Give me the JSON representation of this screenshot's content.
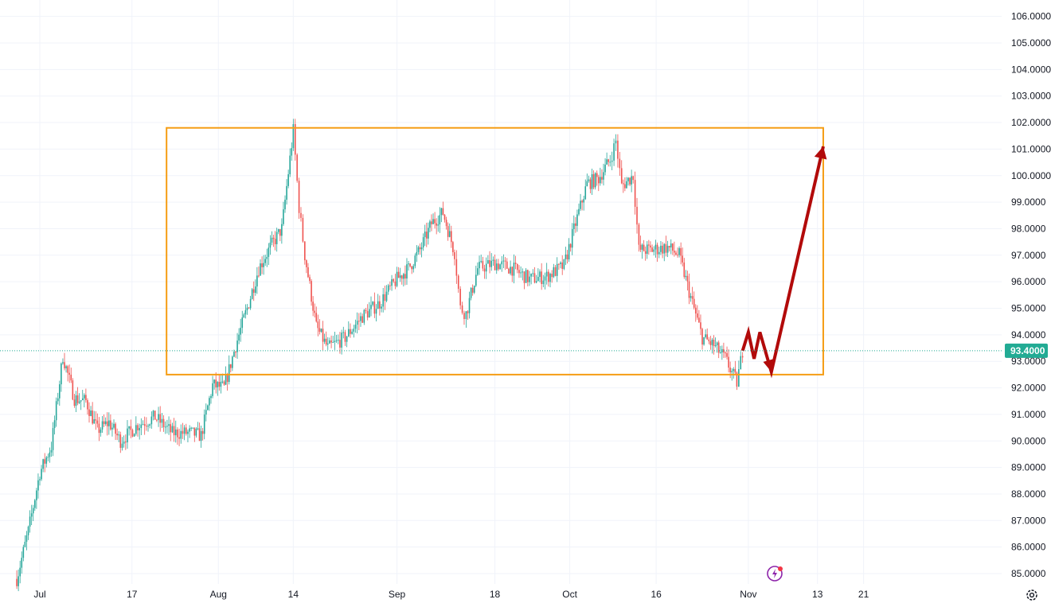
{
  "chart_data": {
    "type": "candlestick",
    "title": "",
    "xlabel": "",
    "ylabel": "",
    "ylim": [
      84.6,
      106.6
    ],
    "x_ticks": [
      {
        "label": "Jul",
        "date": "2023-07-01"
      },
      {
        "label": "17",
        "date": "2023-07-17"
      },
      {
        "label": "Aug",
        "date": "2023-08-01"
      },
      {
        "label": "14",
        "date": "2023-08-14"
      },
      {
        "label": "Sep",
        "date": "2023-09-01"
      },
      {
        "label": "18",
        "date": "2023-09-18"
      },
      {
        "label": "Oct",
        "date": "2023-10-01"
      },
      {
        "label": "16",
        "date": "2023-10-16"
      },
      {
        "label": "Nov",
        "date": "2023-11-01"
      },
      {
        "label": "13",
        "date": "2023-11-13"
      },
      {
        "label": "21",
        "date": "2023-11-21"
      }
    ],
    "y_ticks": [
      "106.0000",
      "105.0000",
      "104.0000",
      "103.0000",
      "102.0000",
      "101.0000",
      "100.0000",
      "99.0000",
      "98.0000",
      "97.0000",
      "96.0000",
      "95.0000",
      "94.0000",
      "93.0000",
      "92.0000",
      "91.0000",
      "90.0000",
      "89.0000",
      "88.0000",
      "87.0000",
      "86.0000",
      "85.0000"
    ],
    "y_tick_values": [
      106,
      105,
      104,
      103,
      102,
      101,
      100,
      99,
      98,
      97,
      96,
      95,
      94,
      93,
      92,
      91,
      90,
      89,
      88,
      87,
      86,
      85
    ],
    "last_price": 93.4,
    "last_price_label": "93.4000",
    "price_path": [
      [
        "2023-06-27",
        84.8
      ],
      [
        "2023-06-29",
        86.6
      ],
      [
        "2023-07-01",
        88.8
      ],
      [
        "2023-07-03",
        89.8
      ],
      [
        "2023-07-05",
        93.2
      ],
      [
        "2023-07-07",
        91.6
      ],
      [
        "2023-07-09",
        91.5
      ],
      [
        "2023-07-11",
        90.4
      ],
      [
        "2023-07-13",
        90.7
      ],
      [
        "2023-07-15",
        90.0
      ],
      [
        "2023-07-18",
        90.6
      ],
      [
        "2023-07-21",
        90.9
      ],
      [
        "2023-07-24",
        90.3
      ],
      [
        "2023-07-27",
        90.3
      ],
      [
        "2023-07-29",
        90.2
      ],
      [
        "2023-07-31",
        92.1
      ],
      [
        "2023-08-02",
        92.0
      ],
      [
        "2023-08-04",
        93.6
      ],
      [
        "2023-08-06",
        95.0
      ],
      [
        "2023-08-08",
        96.5
      ],
      [
        "2023-08-10",
        97.3
      ],
      [
        "2023-08-12",
        98.0
      ],
      [
        "2023-08-14",
        101.7
      ],
      [
        "2023-08-15",
        98.8
      ],
      [
        "2023-08-16",
        97.0
      ],
      [
        "2023-08-18",
        94.3
      ],
      [
        "2023-08-20",
        93.5
      ],
      [
        "2023-08-23",
        93.9
      ],
      [
        "2023-08-26",
        94.7
      ],
      [
        "2023-08-29",
        95.2
      ],
      [
        "2023-09-01",
        96.1
      ],
      [
        "2023-09-03",
        96.5
      ],
      [
        "2023-09-05",
        97.2
      ],
      [
        "2023-09-07",
        98.2
      ],
      [
        "2023-09-09",
        98.6
      ],
      [
        "2023-09-11",
        97.1
      ],
      [
        "2023-09-12",
        95.0
      ],
      [
        "2023-09-13",
        94.8
      ],
      [
        "2023-09-15",
        96.5
      ],
      [
        "2023-09-18",
        96.7
      ],
      [
        "2023-09-21",
        96.5
      ],
      [
        "2023-09-24",
        96.1
      ],
      [
        "2023-09-27",
        96.2
      ],
      [
        "2023-09-30",
        96.6
      ],
      [
        "2023-10-02",
        98.2
      ],
      [
        "2023-10-04",
        99.7
      ],
      [
        "2023-10-06",
        99.9
      ],
      [
        "2023-10-08",
        100.6
      ],
      [
        "2023-10-09",
        101.3
      ],
      [
        "2023-10-10",
        99.6
      ],
      [
        "2023-10-12",
        100.0
      ],
      [
        "2023-10-13",
        97.2
      ],
      [
        "2023-10-15",
        97.2
      ],
      [
        "2023-10-18",
        97.3
      ],
      [
        "2023-10-20",
        97.0
      ],
      [
        "2023-10-22",
        95.4
      ],
      [
        "2023-10-24",
        93.9
      ],
      [
        "2023-10-26",
        93.6
      ],
      [
        "2023-10-28",
        93.1
      ],
      [
        "2023-10-30",
        92.2
      ],
      [
        "2023-10-31",
        93.4
      ]
    ],
    "annotations": {
      "range_box": {
        "start": "2023-07-23",
        "end": "2023-11-14",
        "low": 92.5,
        "high": 101.8,
        "color": "#f59d14"
      },
      "projection_path": [
        [
          "2023-10-31",
          93.4
        ],
        [
          "2023-11-01",
          94.1
        ],
        [
          "2023-11-02",
          93.1
        ],
        [
          "2023-11-03",
          94.1
        ],
        [
          "2023-11-05",
          92.6
        ],
        [
          "2023-11-14",
          101.1
        ]
      ],
      "projection_color": "#b20a0a"
    },
    "colors": {
      "up": "#26a69a",
      "down": "#ef5350",
      "grid": "#f0f3fa",
      "last_price": "#22ab94"
    }
  },
  "toolbar": {
    "settings_icon": "gear-icon",
    "bolt_icon": "lightning-icon"
  }
}
